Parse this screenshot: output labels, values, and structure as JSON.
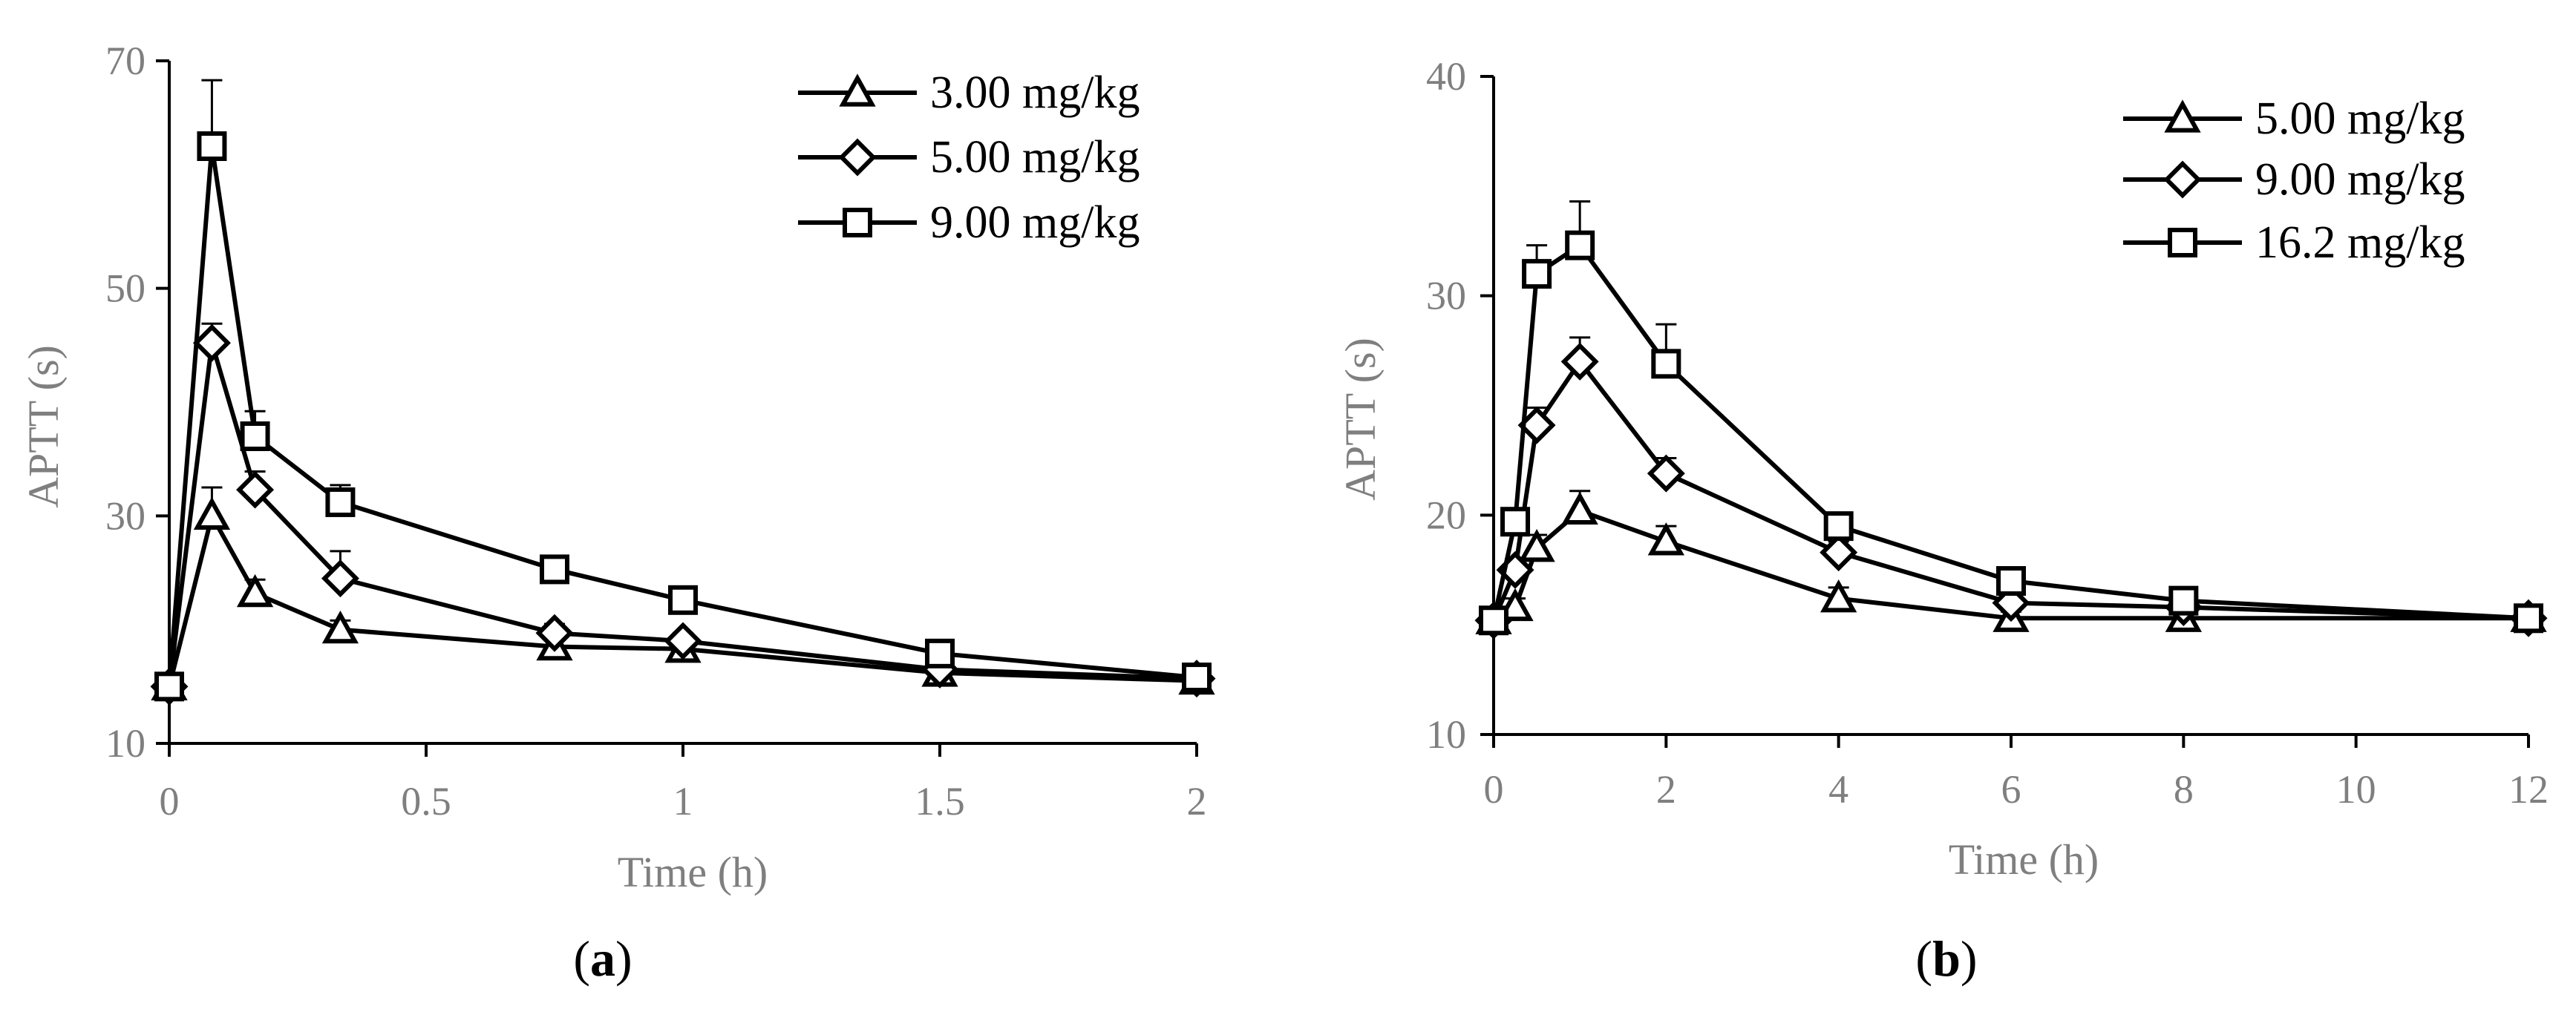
{
  "chart_data": [
    {
      "type": "line",
      "panel_label": "a",
      "xlabel": "Time (h)",
      "ylabel": "APTT (s)",
      "xlim": [
        0,
        2
      ],
      "ylim": [
        10,
        70
      ],
      "xticks": [
        "0",
        "0.5",
        "1",
        "1.5",
        "2"
      ],
      "yticks": [
        "10",
        "30",
        "50",
        "70"
      ],
      "legend_position": "top-right",
      "series": [
        {
          "name": "3.00 mg/kg",
          "marker": "triangle",
          "x": [
            0,
            0.083,
            0.167,
            0.333,
            0.75,
            1,
            1.5,
            2
          ],
          "y": [
            15.0,
            30.0,
            23.2,
            20.0,
            18.5,
            18.3,
            16.2,
            15.5
          ],
          "err": [
            0,
            2.5,
            1.2,
            0.8,
            0.6,
            0.5,
            0.4,
            0.3
          ]
        },
        {
          "name": "5.00 mg/kg",
          "marker": "diamond",
          "x": [
            0,
            0.083,
            0.167,
            0.333,
            0.75,
            1,
            1.5,
            2
          ],
          "y": [
            15.0,
            45.2,
            32.3,
            24.5,
            19.7,
            19.0,
            16.5,
            15.7
          ],
          "err": [
            0,
            1.7,
            1.6,
            2.4,
            0.8,
            0.7,
            0.5,
            0.4
          ]
        },
        {
          "name": "9.00 mg/kg",
          "marker": "square",
          "x": [
            0,
            0.083,
            0.167,
            0.333,
            0.75,
            1,
            1.5,
            2
          ],
          "y": [
            15.0,
            62.5,
            37.0,
            31.2,
            25.3,
            22.6,
            17.9,
            15.8
          ],
          "err": [
            0,
            5.8,
            2.2,
            1.5,
            0.7,
            0.8,
            0.6,
            0.4
          ]
        }
      ]
    },
    {
      "type": "line",
      "panel_label": "b",
      "xlabel": "Time (h)",
      "ylabel": "APTT (s)",
      "xlim": [
        0,
        12
      ],
      "ylim": [
        10,
        40
      ],
      "xticks": [
        "0",
        "2",
        "4",
        "6",
        "8",
        "10",
        "12"
      ],
      "yticks": [
        "10",
        "20",
        "30",
        "40"
      ],
      "legend_position": "top-right",
      "series": [
        {
          "name": "5.00 mg/kg",
          "marker": "triangle",
          "x": [
            0,
            0.25,
            0.5,
            1,
            2,
            4,
            6,
            8,
            12
          ],
          "y": [
            15.2,
            15.8,
            18.5,
            20.2,
            18.8,
            16.2,
            15.3,
            15.3,
            15.3
          ],
          "err": [
            0,
            0.4,
            0.6,
            0.9,
            0.7,
            0.5,
            0.3,
            0.3,
            0.3
          ]
        },
        {
          "name": "9.00 mg/kg",
          "marker": "diamond",
          "x": [
            0,
            0.25,
            0.5,
            1,
            2,
            4,
            6,
            8,
            12
          ],
          "y": [
            15.2,
            17.5,
            24.1,
            27.0,
            21.9,
            18.3,
            16.0,
            15.8,
            15.3
          ],
          "err": [
            0,
            0.5,
            0.8,
            1.1,
            0.7,
            0.5,
            0.4,
            0.3,
            0.3
          ]
        },
        {
          "name": "16.2 mg/kg",
          "marker": "square",
          "x": [
            0,
            0.25,
            0.5,
            1,
            2,
            4,
            6,
            8,
            12
          ],
          "y": [
            15.2,
            19.7,
            31.0,
            32.3,
            26.9,
            19.5,
            17.0,
            16.1,
            15.3
          ],
          "err": [
            0,
            0.5,
            1.3,
            2.0,
            1.8,
            0.6,
            0.5,
            0.4,
            0.3
          ]
        }
      ]
    }
  ]
}
